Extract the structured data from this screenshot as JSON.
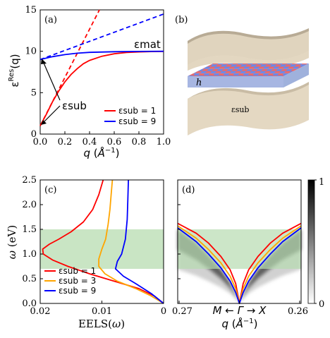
{
  "chart_data": [
    {
      "panel": "(a)",
      "type": "line",
      "xlabel": "q (Å⁻¹)",
      "ylabel": "ε^Res(q)",
      "xlim": [
        0,
        1.0
      ],
      "ylim": [
        0,
        15
      ],
      "xticks": [
        "0.0",
        "0.2",
        "0.4",
        "0.6",
        "0.8",
        "1.0"
      ],
      "yticks": [
        "0",
        "5",
        "10",
        "15"
      ],
      "annotations": {
        "mat": "εmat",
        "sub": "εsub"
      },
      "legend": {
        "placement": "lower-right",
        "entries": [
          "εsub = 1",
          "εsub = 9"
        ]
      },
      "series": [
        {
          "name": "εsub = 1",
          "color": "#ff0000",
          "style": "solid",
          "x": [
            0,
            0.05,
            0.1,
            0.15,
            0.2,
            0.25,
            0.3,
            0.35,
            0.4,
            0.5,
            0.6,
            0.7,
            0.8,
            0.9,
            1.0
          ],
          "y": [
            1.0,
            2.4,
            3.9,
            5.2,
            6.3,
            7.2,
            7.9,
            8.5,
            8.9,
            9.4,
            9.7,
            9.85,
            9.92,
            9.96,
            9.98
          ]
        },
        {
          "name": "εsub = 1 (linear)",
          "color": "#ff0000",
          "style": "dashed",
          "x": [
            0,
            0.48
          ],
          "y": [
            1.0,
            15.0
          ]
        },
        {
          "name": "εsub = 9",
          "color": "#0000ff",
          "style": "solid",
          "x": [
            0,
            0.1,
            0.2,
            0.3,
            0.4,
            0.6,
            0.8,
            1.0
          ],
          "y": [
            9.0,
            9.35,
            9.6,
            9.77,
            9.87,
            9.95,
            9.98,
            10.0
          ]
        },
        {
          "name": "εsub = 9 (linear)",
          "color": "#0000ff",
          "style": "dashed",
          "x": [
            0,
            1.0
          ],
          "y": [
            9.0,
            14.5
          ]
        }
      ]
    },
    {
      "panel": "(c)",
      "type": "line",
      "xlabel": "EELS(ω)",
      "ylabel": "ω (eV)",
      "xlim": [
        0.02,
        0
      ],
      "ylim": [
        0,
        2.5
      ],
      "xticks": [
        "0.02",
        "0.01",
        "0"
      ],
      "yticks": [
        "0.0",
        "0.5",
        "1.0",
        "1.5",
        "2.0",
        "2.5"
      ],
      "shaded_band": [
        0.7,
        1.5
      ],
      "legend": {
        "placement": "lower-left",
        "entries": [
          "εsub = 1",
          "εsub = 3",
          "εsub = 9"
        ]
      },
      "series": [
        {
          "name": "εsub = 1",
          "color": "#ff0000",
          "x": [
            0,
            0.0015,
            0.004,
            0.008,
            0.012,
            0.0155,
            0.018,
            0.0195,
            0.0196,
            0.0185,
            0.017,
            0.015,
            0.013,
            0.0115,
            0.0105,
            0.0098
          ],
          "y": [
            0,
            0.15,
            0.3,
            0.45,
            0.6,
            0.75,
            0.88,
            1.0,
            1.1,
            1.2,
            1.3,
            1.45,
            1.65,
            1.9,
            2.2,
            2.5
          ]
        },
        {
          "name": "εsub = 3",
          "color": "#ffa500",
          "x": [
            0,
            0.002,
            0.0045,
            0.0075,
            0.0095,
            0.0105,
            0.0105,
            0.01,
            0.0094,
            0.009,
            0.0087,
            0.0085,
            0.0083
          ],
          "y": [
            0,
            0.15,
            0.3,
            0.45,
            0.6,
            0.75,
            0.9,
            1.1,
            1.3,
            1.6,
            1.9,
            2.2,
            2.5
          ]
        },
        {
          "name": "εsub = 9",
          "color": "#0000ff",
          "x": [
            0,
            0.002,
            0.0045,
            0.0065,
            0.0078,
            0.0075,
            0.0068,
            0.0062,
            0.0059,
            0.0058,
            0.0057
          ],
          "y": [
            0,
            0.2,
            0.4,
            0.55,
            0.7,
            0.85,
            1.0,
            1.3,
            1.7,
            2.1,
            2.5
          ]
        }
      ]
    },
    {
      "panel": "(d)",
      "type": "heatmap",
      "xlabel": "q (Å⁻¹)",
      "xticks": [
        "0.27",
        "M ← Γ → X",
        "0.26"
      ],
      "ylim": [
        0,
        2.5
      ],
      "colorbar": {
        "min": "0",
        "max": "1"
      },
      "shaded_band": [
        0.7,
        1.5
      ],
      "series": [
        {
          "name": "εsub = 1",
          "color": "#ff0000",
          "q": [
            1.0,
            0.7,
            0.5,
            0.3,
            0.15,
            0.06,
            0.0
          ],
          "y": [
            1.62,
            1.42,
            1.22,
            0.95,
            0.68,
            0.4,
            0.0
          ]
        },
        {
          "name": "εsub = 3",
          "color": "#ffa500",
          "q": [
            1.0,
            0.7,
            0.5,
            0.3,
            0.15,
            0.06,
            0.0
          ],
          "y": [
            1.57,
            1.32,
            1.09,
            0.82,
            0.55,
            0.3,
            0.0
          ]
        },
        {
          "name": "εsub = 9",
          "color": "#0000ff",
          "q": [
            1.0,
            0.7,
            0.5,
            0.3,
            0.15,
            0.06,
            0.0
          ],
          "y": [
            1.53,
            1.25,
            1.0,
            0.72,
            0.45,
            0.22,
            0.0
          ]
        }
      ]
    }
  ],
  "diagram": {
    "panel": "(b)",
    "layer_label": "h",
    "substrate_label": "εsub"
  }
}
